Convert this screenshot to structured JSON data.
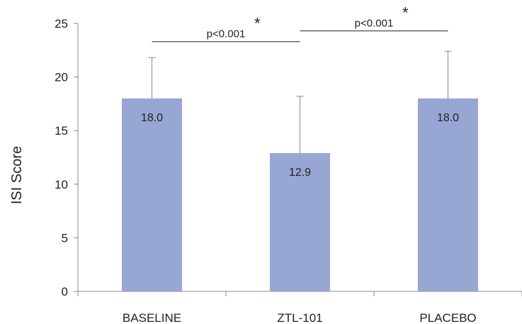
{
  "chart_data": {
    "type": "bar",
    "categories": [
      "BASELINE",
      "ZTL-101",
      "PLACEBO"
    ],
    "values": [
      18.0,
      12.9,
      18.0
    ],
    "value_labels": [
      "18.0",
      "12.9",
      "18.0"
    ],
    "error_upper": [
      21.8,
      18.2,
      22.4
    ],
    "title": "",
    "xlabel": "",
    "ylabel": "ISI Score",
    "ylim": [
      0,
      25
    ],
    "yticks": [
      0,
      5,
      10,
      15,
      20,
      25
    ],
    "grid": false,
    "bar_color": "#98a6d4",
    "annotations": [
      {
        "from": 0,
        "to": 1,
        "y": 23.3,
        "text": "p<0.001",
        "star": "*"
      },
      {
        "from": 1,
        "to": 2,
        "y": 24.3,
        "text": "p<0.001",
        "star": "*"
      }
    ]
  }
}
